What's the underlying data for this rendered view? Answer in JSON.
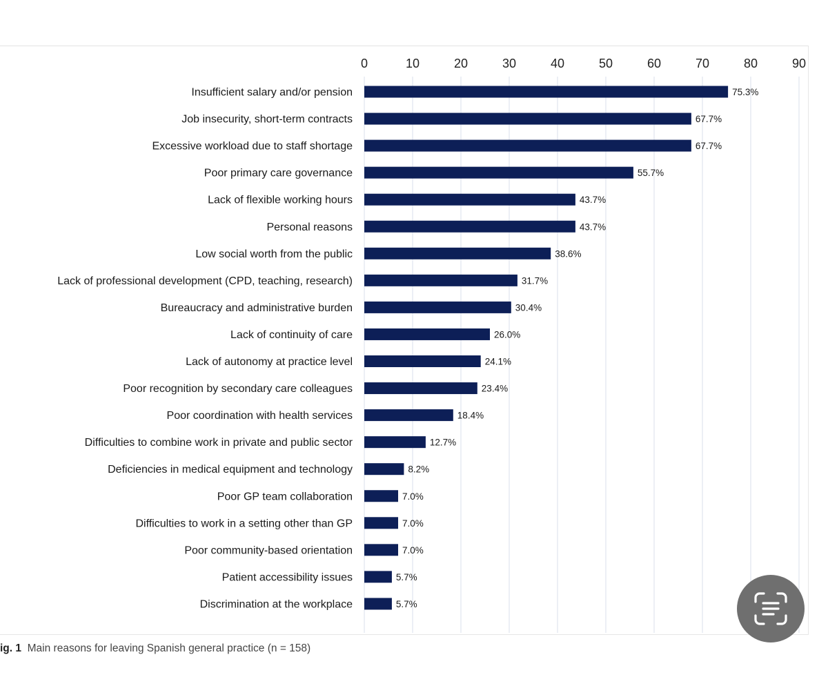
{
  "chart_data": {
    "type": "bar",
    "orientation": "horizontal",
    "categories": [
      "Insufficient salary and/or pension",
      "Job insecurity, short-term contracts",
      "Excessive workload due to staff shortage",
      "Poor primary care governance",
      "Lack of flexible working hours",
      "Personal reasons",
      "Low social worth from the public",
      "Lack of professional development (CPD, teaching, research)",
      "Bureaucracy and administrative burden",
      "Lack of continuity of care",
      "Lack of autonomy at practice level",
      "Poor recognition by secondary care colleagues",
      "Poor coordination with health services",
      "Difficulties to combine work in private and public sector",
      "Deficiencies in medical equipment and technology",
      "Poor GP team collaboration",
      "Difficulties to work in a setting other than GP",
      "Poor community-based orientation",
      "Patient accessibility issues",
      "Discrimination at the workplace"
    ],
    "values": [
      75.3,
      67.7,
      67.7,
      55.7,
      43.7,
      43.7,
      38.6,
      31.7,
      30.4,
      26.0,
      24.1,
      23.4,
      18.4,
      12.7,
      8.2,
      7.0,
      7.0,
      7.0,
      5.7,
      5.7
    ],
    "data_labels": [
      "75.3%",
      "67.7%",
      "67.7%",
      "55.7%",
      "43.7%",
      "43.7%",
      "38.6%",
      "31.7%",
      "30.4%",
      "26.0%",
      "24.1%",
      "23.4%",
      "18.4%",
      "12.7%",
      "8.2%",
      "7.0%",
      "7.0%",
      "7.0%",
      "5.7%",
      "5.7%"
    ],
    "xlim": [
      0,
      90
    ],
    "xticks": [
      "0",
      "10",
      "20",
      "30",
      "40",
      "50",
      "60",
      "70",
      "80",
      "90"
    ],
    "x_axis_position": "top",
    "grid": true,
    "bar_color": "#0d1f57",
    "grid_color": "#dfe4ee"
  },
  "caption": {
    "prefix": "ig. 1",
    "text": "Main reasons for leaving Spanish general practice (n = 158)"
  },
  "overlay": {
    "icon": "text-scan-icon"
  }
}
